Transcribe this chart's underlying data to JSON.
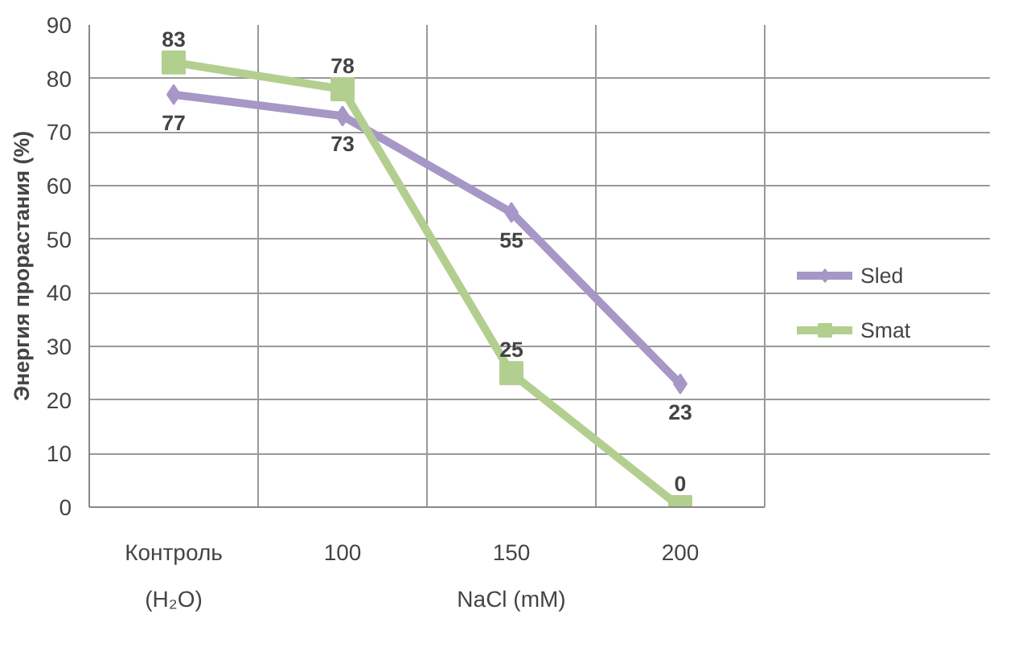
{
  "chart_data": {
    "type": "line",
    "ylabel": "Энергия прорастания (%)",
    "xlabel": "NaCl (mM)",
    "annotations": [
      "(H₂O)"
    ],
    "categories": [
      "Контроль",
      "100",
      "150",
      "200"
    ],
    "series": [
      {
        "name": "Sled",
        "color": "#a797c6",
        "values": [
          77,
          73,
          55,
          23
        ],
        "marker": "diamond"
      },
      {
        "name": "Smat",
        "color": "#b3cf8f",
        "values": [
          83,
          78,
          25,
          0
        ],
        "marker": "square"
      }
    ],
    "ylim": [
      0,
      90
    ],
    "yticks": [
      0,
      10,
      20,
      30,
      40,
      50,
      60,
      70,
      80,
      90
    ],
    "grid": true,
    "legend": "right",
    "data_labels": true,
    "line_style": "solid"
  }
}
